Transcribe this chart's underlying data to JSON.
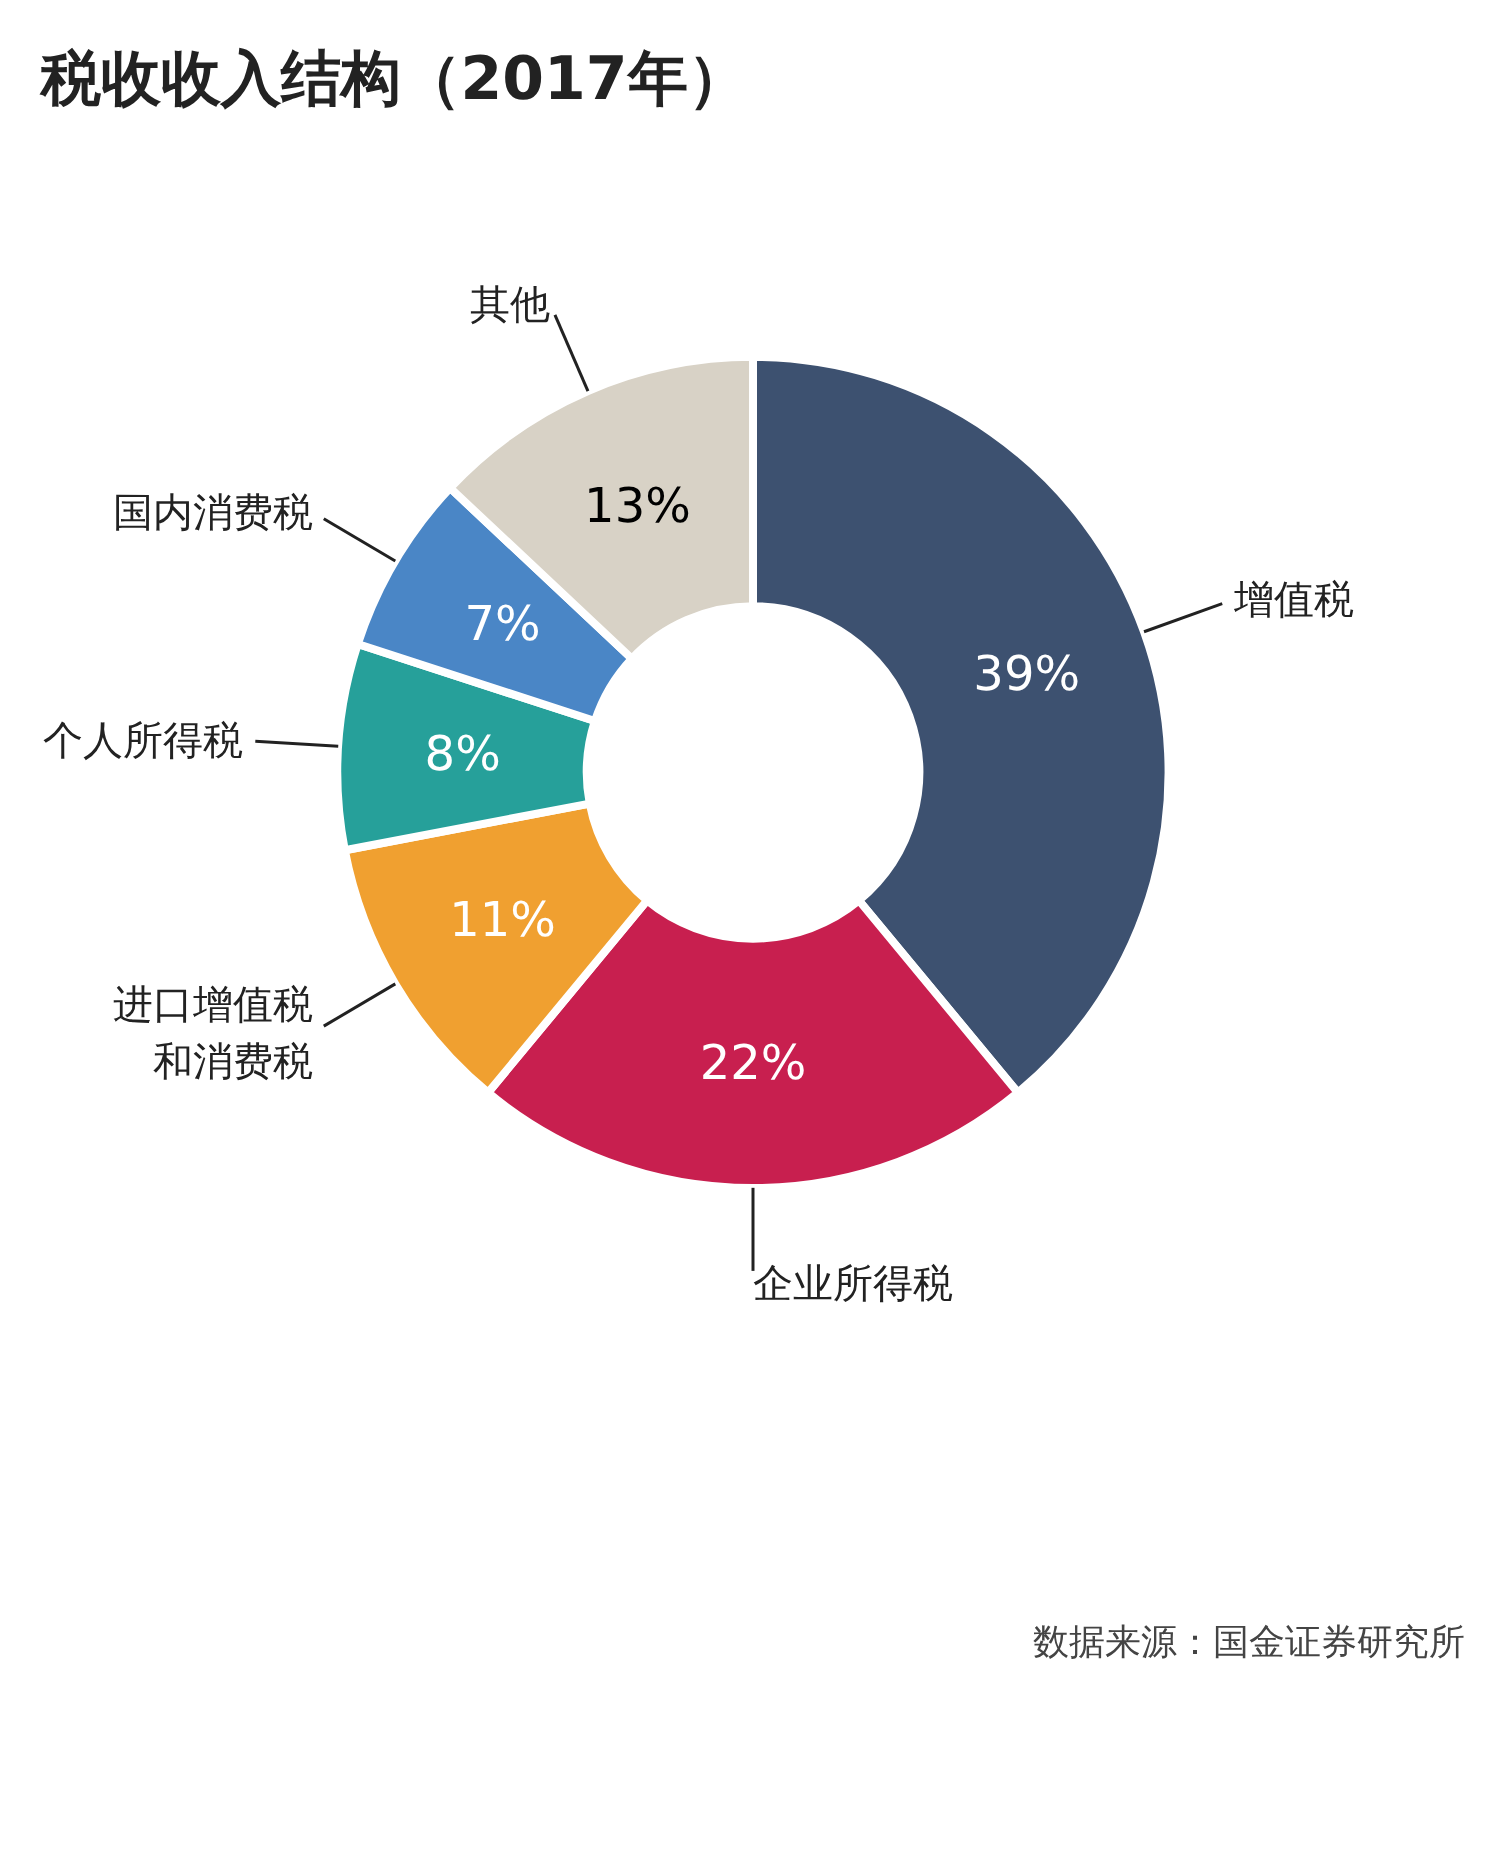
{
  "chart_data": {
    "type": "donut",
    "title": "税收收入结构（2017年）",
    "categories": [
      "增值税",
      "企业所得税",
      "进口增值税和消费税",
      "个人所得税",
      "国内消费税",
      "其他"
    ],
    "values": [
      39,
      22,
      11,
      8,
      7,
      13
    ],
    "value_labels": [
      "39%",
      "22%",
      "11%",
      "8%",
      "7%",
      "13%"
    ],
    "colors": [
      "#3d5170",
      "#c81f4f",
      "#f0a030",
      "#26a09a",
      "#4a86c6",
      "#d8d2c6"
    ],
    "annotations": [
      "数据来源：国金证券研究所"
    ]
  }
}
